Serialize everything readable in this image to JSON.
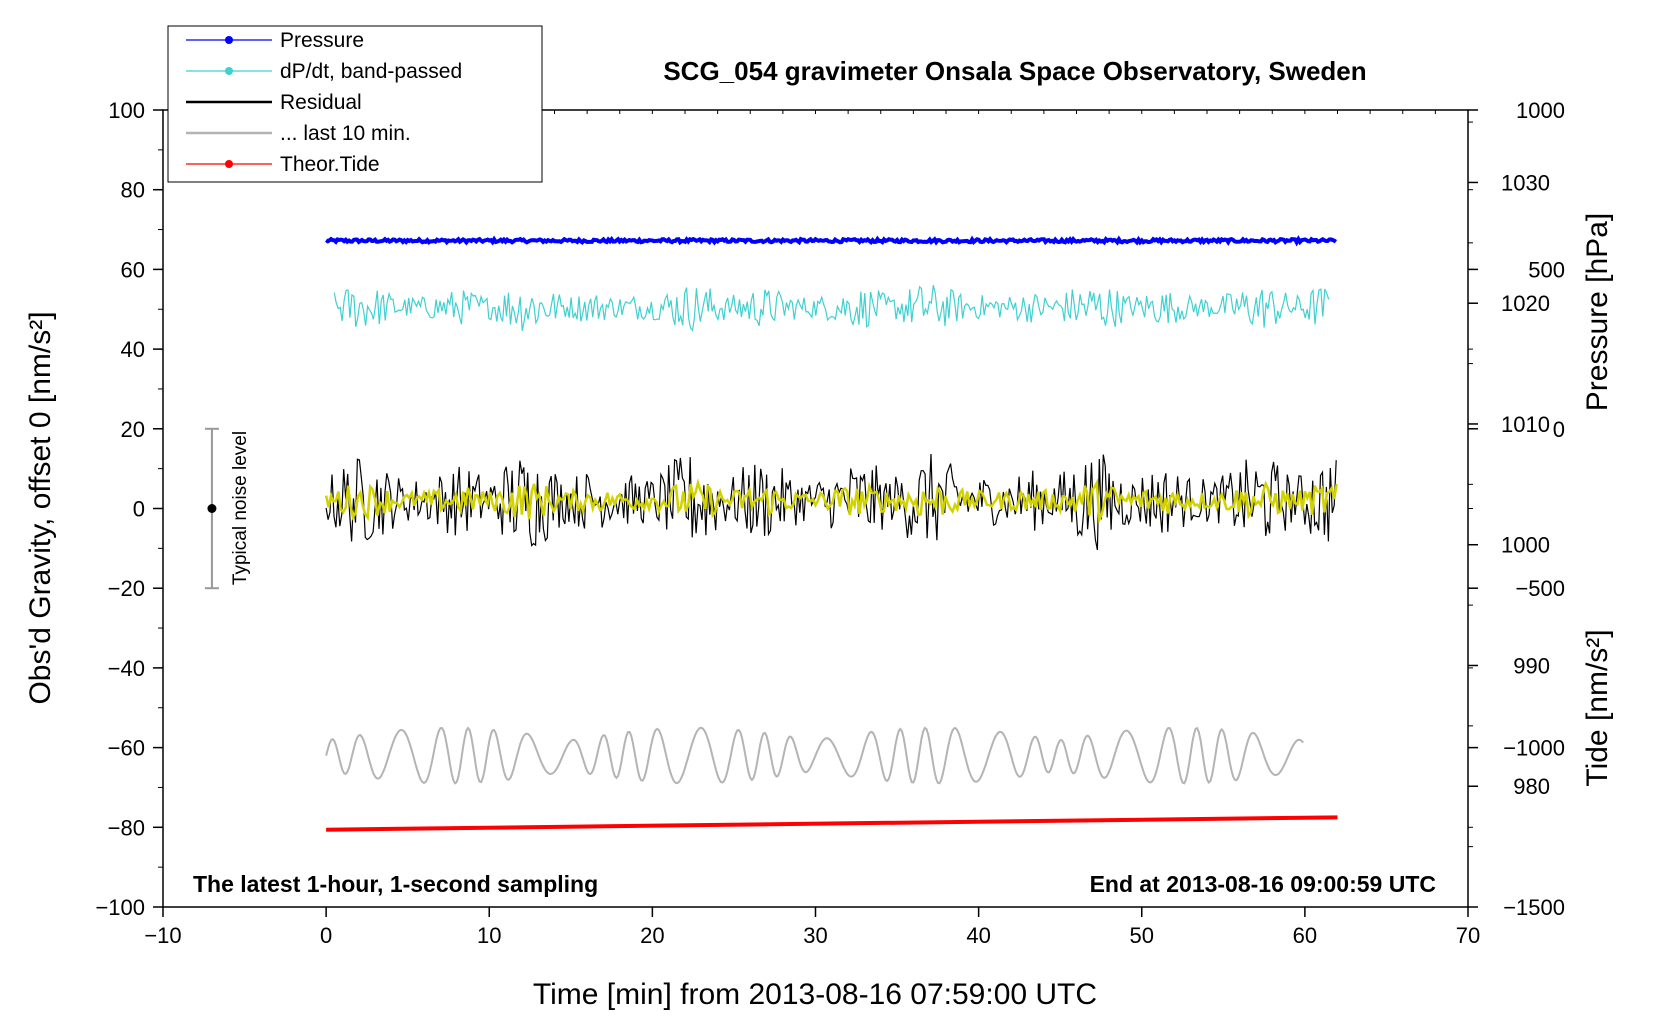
{
  "chart_data": {
    "type": "line",
    "title": "SCG_054 gravimeter Onsala Space Observatory, Sweden",
    "xlabel": "Time [min] from 2013-08-16 07:59:00 UTC",
    "ylabel_left": "Obs'd Gravity, offset 0 [nm/s²]",
    "ylabel_right_top": "Pressure [hPa]",
    "ylabel_right_bottom": "Tide [nm/s²]",
    "xlim": [
      -10,
      70
    ],
    "ylim": [
      -100,
      100
    ],
    "pressure_lim": [
      970,
      1036
    ],
    "tide_lim": [
      -1500,
      1000
    ],
    "x_ticks": [
      "−10",
      "0",
      "10",
      "20",
      "30",
      "40",
      "50",
      "60",
      "70"
    ],
    "y_ticks": [
      "−100",
      "−80",
      "−60",
      "−40",
      "−20",
      "0",
      "20",
      "40",
      "60",
      "80",
      "100"
    ],
    "pressure_ticks": [
      "980",
      "990",
      "1000",
      "1010",
      "1020",
      "1030"
    ],
    "tide_ticks": [
      "−1500",
      "−1000",
      "−500",
      "0",
      "500",
      "1000"
    ],
    "annotation_left": "The latest 1-hour, 1-second sampling",
    "annotation_right": "End at 2013-08-16 09:00:59 UTC",
    "noise_label": "Typical noise level",
    "noise_bar": {
      "x": -7,
      "center": 0,
      "low": -20,
      "high": 20
    },
    "series": [
      {
        "name": "Pressure",
        "color": "#0000ff",
        "axis": "left",
        "x_range": [
          0,
          62
        ],
        "level": 67.2,
        "amplitude": 0.4
      },
      {
        "name": "dP/dt, band-passed",
        "color": "#40d0d0",
        "axis": "left",
        "x_range": [
          0.5,
          61.5
        ],
        "level": 50.5,
        "amplitude": 4.5
      },
      {
        "name": "Residual",
        "color": "#000000",
        "axis": "left",
        "x_range": [
          0,
          62
        ],
        "level": 2,
        "amplitude": 9
      },
      {
        "name": "... last 10 min.",
        "color": "#b4b4b4",
        "axis": "left",
        "x_range": [
          0,
          60
        ],
        "level": -62,
        "amplitude": 7
      },
      {
        "name": "Theor.Tide",
        "color": "#ff0000",
        "axis": "left",
        "x_range": [
          0,
          62
        ],
        "start": -80.6,
        "end": -77.5
      }
    ],
    "overlay": {
      "color": "#d2d200",
      "level": 2,
      "amplitude": 3.5
    },
    "legend_position": "top-left"
  }
}
